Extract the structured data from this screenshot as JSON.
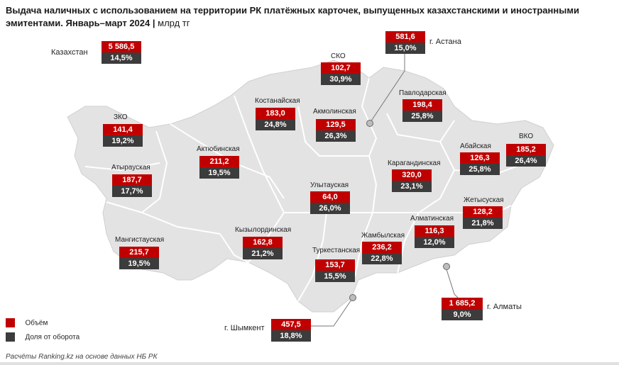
{
  "title": "Выдача наличных с использованием на территории РК платёжных карточек, выпущенных казахстанскими и иностранными эмитентами. Январь–март 2024",
  "unit": "млрд тг",
  "colors": {
    "volume": "#c00000",
    "share": "#3c3c3c",
    "land": "#e3e3e3",
    "border": "#ffffff"
  },
  "kazakhstan": {
    "label": "Казахстан",
    "value": "5 586,5",
    "share": "14,5%"
  },
  "regions": [
    {
      "name": "СКО",
      "value": "102,7",
      "share": "30,9%"
    },
    {
      "name": "Костанайская",
      "value": "183,0",
      "share": "24,8%"
    },
    {
      "name": "Акмолинская",
      "value": "129,5",
      "share": "26,3%"
    },
    {
      "name": "Павлодарская",
      "value": "198,4",
      "share": "25,8%"
    },
    {
      "name": "ЗКО",
      "value": "141,4",
      "share": "19,2%"
    },
    {
      "name": "Актюбинская",
      "value": "211,2",
      "share": "19,5%"
    },
    {
      "name": "Атырауская",
      "value": "187,7",
      "share": "17,7%"
    },
    {
      "name": "Карагандинская",
      "value": "320,0",
      "share": "23,1%"
    },
    {
      "name": "Абайская",
      "value": "126,3",
      "share": "25,8%"
    },
    {
      "name": "ВКО",
      "value": "185,2",
      "share": "26,4%"
    },
    {
      "name": "Улытауская",
      "value": "64,0",
      "share": "26,0%"
    },
    {
      "name": "Жетысуская",
      "value": "128,2",
      "share": "21,8%"
    },
    {
      "name": "Алматинская",
      "value": "116,3",
      "share": "12,0%"
    },
    {
      "name": "Кызылординская",
      "value": "162,8",
      "share": "21,2%"
    },
    {
      "name": "Мангистауская",
      "value": "215,7",
      "share": "19,5%"
    },
    {
      "name": "Жамбылская",
      "value": "236,2",
      "share": "22,8%"
    },
    {
      "name": "Туркестанская",
      "value": "153,7",
      "share": "15,5%"
    }
  ],
  "cities": [
    {
      "name": "г. Астана",
      "value": "581,6",
      "share": "15,0%"
    },
    {
      "name": "г. Шымкент",
      "value": "457,5",
      "share": "18,8%"
    },
    {
      "name": "г. Алматы",
      "value": "1 685,2",
      "share": "9,0%"
    }
  ],
  "legend": {
    "volume": "Объём",
    "share": "Доля от оборота"
  },
  "source": "Расчёты Ranking.kz на основе данных НБ РК"
}
